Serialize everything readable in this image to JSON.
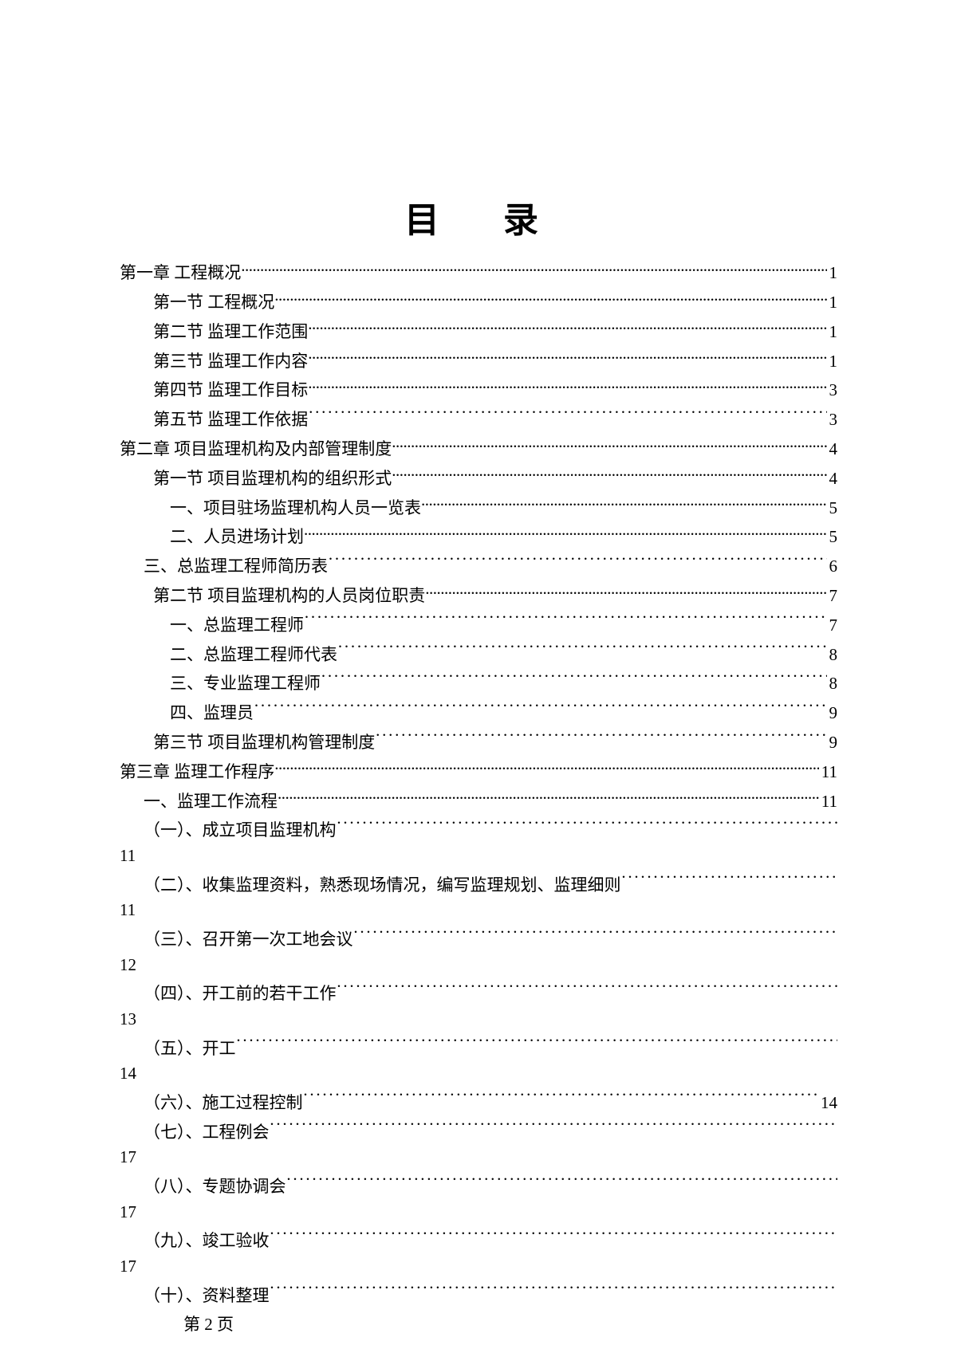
{
  "title": "目　录",
  "footer": "第 2 页",
  "entries": [
    {
      "indent": "indent-0",
      "text": "第一章 工程概况",
      "leader": "dots",
      "page": "1",
      "wrap": false
    },
    {
      "indent": "indent-1",
      "text": "第一节 工程概况",
      "leader": "dots",
      "page": "1",
      "wrap": false
    },
    {
      "indent": "indent-1",
      "text": "第二节 监理工作范围",
      "leader": "dots",
      "page": "1",
      "wrap": false
    },
    {
      "indent": "indent-1",
      "text": "第三节 监理工作内容",
      "leader": "dots",
      "page": "1",
      "wrap": false
    },
    {
      "indent": "indent-1",
      "text": "第四节 监理工作目标",
      "leader": "dots",
      "page": "3",
      "wrap": false
    },
    {
      "indent": "indent-1",
      "text": "第五节 监理工作依据",
      "leader": "mdots",
      "page": "3",
      "wrap": false
    },
    {
      "indent": "indent-0",
      "text": "第二章  项目监理机构及内部管理制度",
      "leader": "dots",
      "page": "4",
      "wrap": false
    },
    {
      "indent": "indent-1",
      "text": "第一节 项目监理机构的组织形式",
      "leader": "dots",
      "page": "4",
      "wrap": false
    },
    {
      "indent": "indent-2",
      "text": "一、项目驻场监理机构人员一览表",
      "leader": "dots",
      "page": "5",
      "wrap": false
    },
    {
      "indent": "indent-2",
      "text": "二、人员进场计划",
      "leader": "dots",
      "page": "5",
      "wrap": false
    },
    {
      "indent": "indent-s",
      "text": "三、总监理工程师简历表",
      "leader": "mdots",
      "page": "6",
      "wrap": false
    },
    {
      "indent": "indent-1",
      "text": "第二节  项目监理机构的人员岗位职责",
      "leader": "dots",
      "page": "7",
      "wrap": false
    },
    {
      "indent": "indent-2",
      "text": "一、总监理工程师",
      "leader": "mdots",
      "page": "7",
      "wrap": false
    },
    {
      "indent": "indent-2",
      "text": "二、总监理工程师代表",
      "leader": "mdots",
      "page": "8",
      "wrap": false
    },
    {
      "indent": "indent-2",
      "text": "三、专业监理工程师",
      "leader": "mdots",
      "page": "8",
      "wrap": false
    },
    {
      "indent": "indent-2",
      "text": "四、监理员",
      "leader": "mdots",
      "page": "9",
      "wrap": false
    },
    {
      "indent": "indent-1",
      "text": "第三节 项目监理机构管理制度",
      "leader": "mdots",
      "page": "9",
      "wrap": false
    },
    {
      "indent": "indent-0",
      "text": "第三章 监理工作程序",
      "leader": "dots",
      "page": "11",
      "wrap": false
    },
    {
      "indent": "indent-s",
      "text": "一、监理工作流程",
      "leader": "dots",
      "page": "11",
      "wrap": false
    },
    {
      "indent": "indent-s",
      "text": "（一）、成立项目监理机构",
      "leader": "mdots",
      "page": "11",
      "wrap": true
    },
    {
      "indent": "indent-s",
      "text": "（二）、收集监理资料，熟悉现场情况，编写监理规划、监理细则",
      "leader": "mdots",
      "page": "11",
      "wrap": true
    },
    {
      "indent": "indent-s",
      "text": "（三）、召开第一次工地会议",
      "leader": "mdots",
      "page": "12",
      "wrap": true
    },
    {
      "indent": "indent-s",
      "text": "（四）、开工前的若干工作",
      "leader": "mdots",
      "page": "13",
      "wrap": true
    },
    {
      "indent": "indent-s",
      "text": "（五）、开工",
      "leader": "mdots",
      "page": "14",
      "wrap": true
    },
    {
      "indent": "indent-s",
      "text": "（六）、施工过程控制",
      "leader": "mdots",
      "page": "14",
      "wrap": false
    },
    {
      "indent": "indent-s",
      "text": "（七）、工程例会",
      "leader": "mdots",
      "page": "17",
      "wrap": true
    },
    {
      "indent": "indent-s",
      "text": "（八）、专题协调会",
      "leader": "mdots",
      "page": "17",
      "wrap": true
    },
    {
      "indent": "indent-s",
      "text": "（九）、竣工验收",
      "leader": "mdots",
      "page": "17",
      "wrap": true
    },
    {
      "indent": "indent-s",
      "text": "（十）、资料整理",
      "leader": "mdots",
      "page": "",
      "wrap": false
    }
  ]
}
